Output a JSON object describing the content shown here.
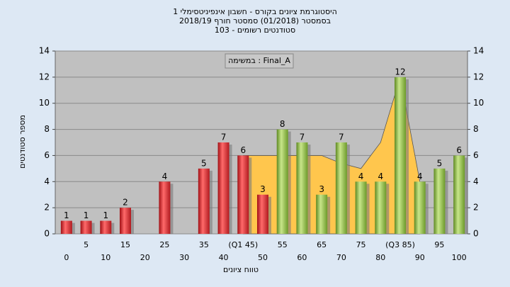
{
  "chart_data": {
    "type": "bar",
    "title": "היסטוגרמת ציונים בקורס - חשבון אינפיניטסימלי 1",
    "subtitle": "בסמסטר  (01/2018)  סמסטר חורף 2018/19",
    "subtitle2": "סטודנטים רשומים - 103",
    "annotation": "במשימה : Final_A",
    "x_label": "טווח ציונים",
    "y_label": "מספר סטודנטים",
    "categories": [
      "0",
      "5",
      "10",
      "15",
      "20",
      "25",
      "30",
      "35",
      "40",
      "(Q1 45)",
      "50",
      "55",
      "60",
      "65",
      "70",
      "75",
      "80",
      "(Q3 85)",
      "90",
      "95",
      "100"
    ],
    "values": [
      1,
      1,
      1,
      2,
      0,
      4,
      0,
      5,
      7,
      6,
      3,
      8,
      7,
      3,
      7,
      4,
      4,
      12,
      4,
      5,
      6
    ],
    "colors": [
      "#e0262c",
      "#e0262c",
      "#e0262c",
      "#e0262c",
      "#e0262c",
      "#e0262c",
      "#e0262c",
      "#e0262c",
      "#e0262c",
      "#e0262c",
      "#e0262c",
      "#8cbf3f",
      "#8cbf3f",
      "#8cbf3f",
      "#8cbf3f",
      "#8cbf3f",
      "#8cbf3f",
      "#8cbf3f",
      "#8cbf3f",
      "#8cbf3f",
      "#8cbf3f"
    ],
    "area": {
      "color": "#ffc64d",
      "values": [
        null,
        null,
        null,
        null,
        null,
        null,
        null,
        null,
        null,
        6,
        6,
        6,
        6,
        6,
        5.4,
        5,
        7,
        12,
        4,
        null,
        null
      ]
    },
    "ylim": [
      0,
      14
    ],
    "yticks": [
      0,
      2,
      4,
      6,
      8,
      10,
      12,
      14
    ],
    "grid": true
  }
}
